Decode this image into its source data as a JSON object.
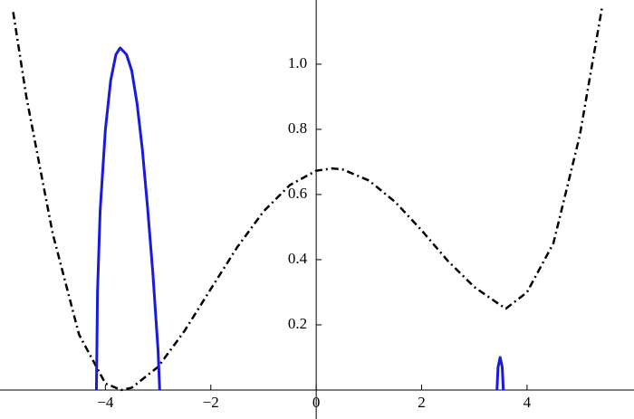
{
  "chart_data": {
    "type": "line",
    "xlim": [
      -6,
      6.03
    ],
    "ylim": [
      -0.089,
      1.197
    ],
    "xticks": [
      {
        "value": -4,
        "label": "−4"
      },
      {
        "value": -2,
        "label": "−2"
      },
      0,
      2,
      4
    ],
    "yticks": [
      0.2,
      0.4,
      0.6,
      0.8,
      {
        "value": 1,
        "label": "1.0"
      }
    ],
    "series": [
      {
        "color": "#000000",
        "style": "dashdot",
        "x": [
          -5.75,
          -5.5,
          -5,
          -4.5,
          -4,
          -3.7,
          -3.5,
          -3,
          -2.5,
          -2,
          -1.5,
          -1,
          -0.5,
          0,
          0.3,
          0.5,
          1,
          1.5,
          2,
          2.5,
          3,
          3.5,
          3.6,
          4,
          4.5,
          5,
          5.43
        ],
        "values": [
          1.16,
          0.9,
          0.48,
          0.17,
          0.02,
          0,
          0.007,
          0.071,
          0.181,
          0.31,
          0.438,
          0.548,
          0.629,
          0.673,
          0.68,
          0.677,
          0.643,
          0.577,
          0.49,
          0.396,
          0.316,
          0.26,
          0.25,
          0.3,
          0.45,
          0.78,
          1.18
        ]
      },
      {
        "color": "#1a1adf",
        "style": "solid",
        "x": [
          -4.17,
          -4.15,
          -4.1,
          -4.0,
          -3.9,
          -3.8,
          -3.72,
          -3.6,
          -3.5,
          -3.4,
          -3.3,
          -3.2,
          -3.1,
          -3.0,
          -2.97,
          0,
          3.43,
          3.45,
          3.49,
          3.53,
          3.55
        ],
        "values": [
          0,
          0.3,
          0.55,
          0.8,
          0.95,
          1.03,
          1.05,
          1.03,
          0.98,
          0.88,
          0.74,
          0.56,
          0.36,
          0.12,
          0,
          null,
          0,
          0.07,
          0.1,
          0.07,
          0
        ]
      }
    ]
  }
}
